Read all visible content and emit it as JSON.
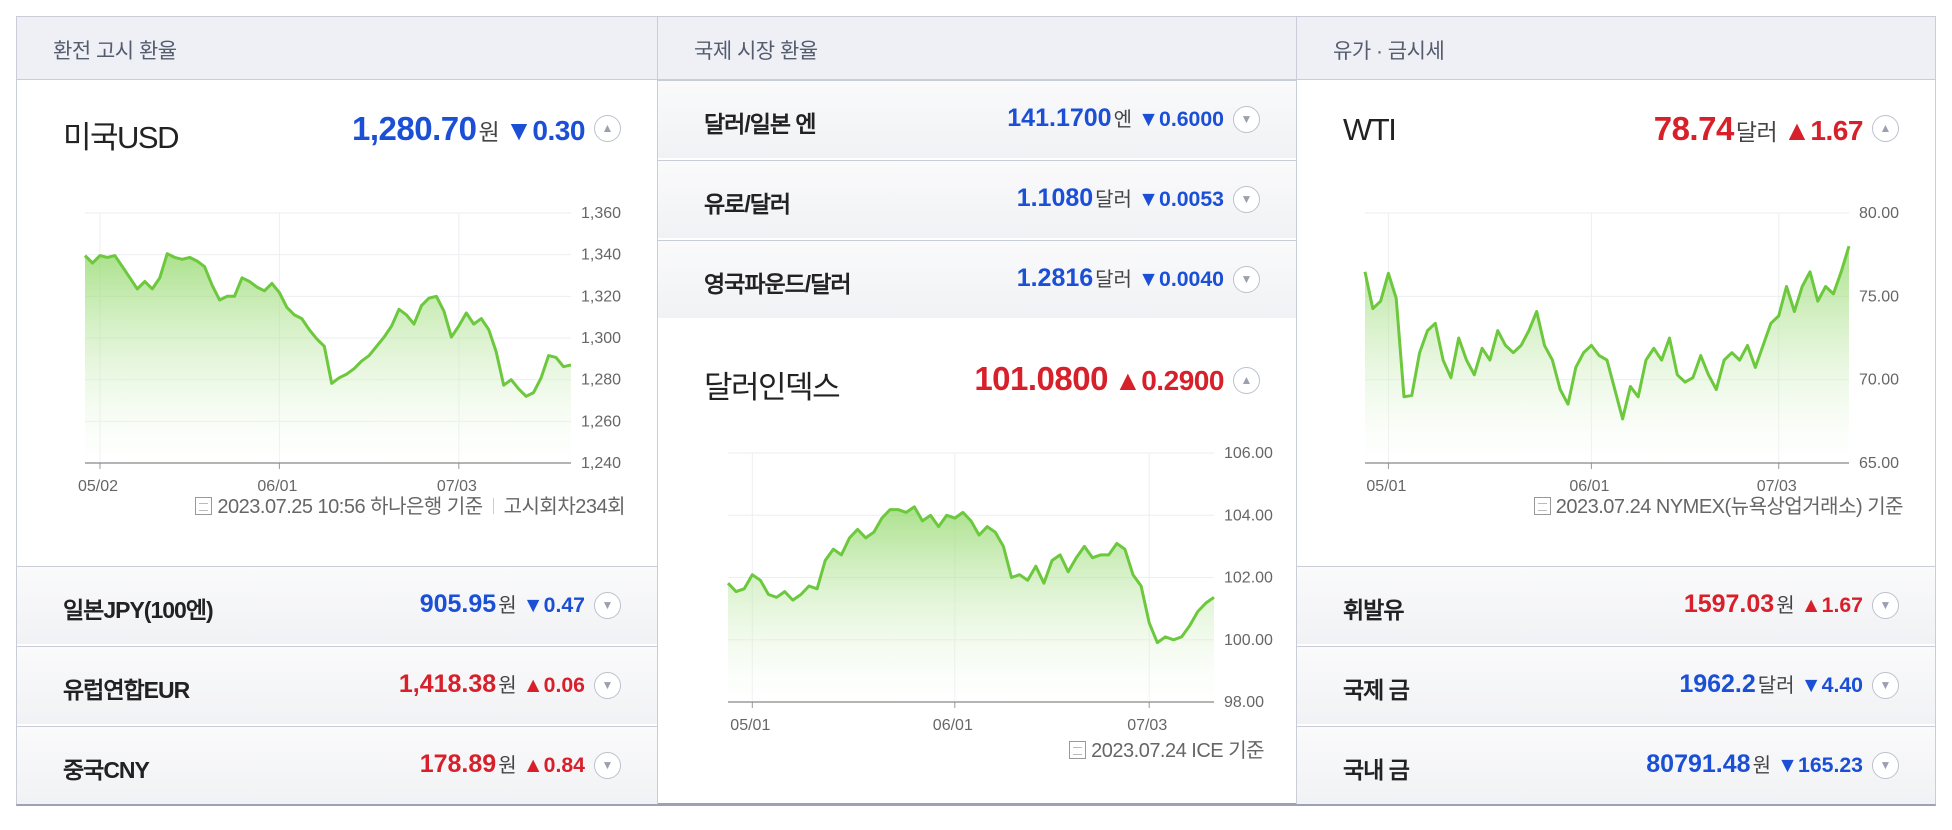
{
  "exchange": {
    "header": "환전 고시 환율",
    "main": {
      "name": "미국USD",
      "value": "1,280.70",
      "unit": "원",
      "change": "▼0.30",
      "direction": "down"
    },
    "note": {
      "text": "2023.07.25 10:56 하나은행 기준",
      "extra": "고시회차234회"
    },
    "rows": [
      {
        "name": "일본JPY(100엔)",
        "value": "905.95",
        "unit": "원",
        "change": "▼0.47",
        "direction": "down"
      },
      {
        "name": "유럽연합EUR",
        "value": "1,418.38",
        "unit": "원",
        "change": "▲0.06",
        "direction": "up"
      },
      {
        "name": "중국CNY",
        "value": "178.89",
        "unit": "원",
        "change": "▲0.84",
        "direction": "up"
      }
    ]
  },
  "world": {
    "header": "국제 시장 환율",
    "rows": [
      {
        "name": "달러/일본 엔",
        "value": "141.1700",
        "unit": "엔",
        "change": "▼0.6000",
        "direction": "down"
      },
      {
        "name": "유로/달러",
        "value": "1.1080",
        "unit": "달러",
        "change": "▼0.0053",
        "direction": "down"
      },
      {
        "name": "영국파운드/달러",
        "value": "1.2816",
        "unit": "달러",
        "change": "▼0.0040",
        "direction": "down"
      }
    ],
    "main": {
      "name": "달러인덱스",
      "value": "101.0800",
      "change": "▲0.2900",
      "direction": "up"
    },
    "note": {
      "text": "2023.07.24 ICE 기준"
    }
  },
  "oil": {
    "header": "유가 · 금시세",
    "main": {
      "name": "WTI",
      "value": "78.74",
      "unit": "달러",
      "change": "▲1.67",
      "direction": "up"
    },
    "note": {
      "text": "2023.07.24 NYMEX(뉴욕상업거래소) 기준"
    },
    "rows": [
      {
        "name": "휘발유",
        "value": "1597.03",
        "unit": "원",
        "change": "▲1.67",
        "direction": "up"
      },
      {
        "name": "국제 금",
        "value": "1962.2",
        "unit": "달러",
        "change": "▼4.40",
        "direction": "down"
      },
      {
        "name": "국내 금",
        "value": "80791.48",
        "unit": "원",
        "change": "▼165.23",
        "direction": "down"
      }
    ]
  },
  "colors": {
    "line": "#6cc83c",
    "down": "#1a4fd6",
    "up": "#d8202b"
  },
  "chart_data": [
    {
      "type": "area",
      "name": "usd",
      "x_ticks": [
        "05/02",
        "06/01",
        "07/03"
      ],
      "y_ticks": [
        "1,360",
        "1,340",
        "1,320",
        "1,300",
        "1,280",
        "1,260",
        "1,240"
      ],
      "ylim": [
        1230,
        1365
      ],
      "x_tick_index": [
        2,
        26,
        50
      ],
      "values": [
        1342,
        1338,
        1342,
        1341,
        1342,
        1336,
        1330,
        1324,
        1328,
        1324,
        1330,
        1343,
        1341,
        1340,
        1341,
        1339,
        1336,
        1326,
        1318,
        1320,
        1320,
        1330,
        1328,
        1325,
        1323,
        1327,
        1322,
        1314,
        1310,
        1308,
        1302,
        1297,
        1293,
        1273,
        1276,
        1278,
        1281,
        1285,
        1288,
        1293,
        1298,
        1304,
        1313,
        1310,
        1305,
        1315,
        1319,
        1320,
        1312,
        1298,
        1304,
        1311,
        1305,
        1308,
        1302,
        1290,
        1272,
        1275,
        1270,
        1266,
        1268,
        1276,
        1288,
        1287,
        1282,
        1283
      ]
    },
    {
      "type": "area",
      "name": "dollar-index",
      "x_ticks": [
        "05/01",
        "06/01",
        "07/03"
      ],
      "y_ticks": [
        "106.00",
        "104.00",
        "102.00",
        "100.00",
        "98.00"
      ],
      "ylim": [
        97.4,
        106.2
      ],
      "x_tick_index": [
        3,
        28,
        52
      ],
      "values": [
        101.6,
        101.3,
        101.4,
        101.9,
        101.7,
        101.2,
        101.1,
        101.3,
        101.0,
        101.2,
        101.5,
        101.4,
        102.4,
        102.8,
        102.6,
        103.2,
        103.5,
        103.2,
        103.4,
        103.9,
        104.2,
        104.2,
        104.1,
        104.3,
        103.8,
        104.0,
        103.6,
        104.0,
        103.9,
        104.1,
        103.8,
        103.3,
        103.6,
        103.4,
        102.9,
        101.8,
        101.9,
        101.7,
        102.2,
        101.6,
        102.4,
        102.6,
        102.0,
        102.5,
        102.9,
        102.5,
        102.6,
        102.6,
        103.0,
        102.8,
        101.9,
        101.5,
        100.2,
        99.5,
        99.7,
        99.6,
        99.7,
        100.1,
        100.6,
        100.9,
        101.1
      ]
    },
    {
      "type": "area",
      "name": "wti",
      "x_ticks": [
        "05/01",
        "06/01",
        "07/03"
      ],
      "y_ticks": [
        "80.00",
        "75.00",
        "70.00",
        "65.00"
      ],
      "ylim": [
        64.0,
        81.0
      ],
      "x_tick_index": [
        3,
        29,
        53
      ],
      "values": [
        77.0,
        74.5,
        75.0,
        76.9,
        75.2,
        68.5,
        68.6,
        71.5,
        73.0,
        73.5,
        71.0,
        69.8,
        72.5,
        71.0,
        70.0,
        71.8,
        71.0,
        73.0,
        72.0,
        71.5,
        72.0,
        73.0,
        74.3,
        72.0,
        71.0,
        69.0,
        68.0,
        70.5,
        71.5,
        72.0,
        71.3,
        71.0,
        69.0,
        67.0,
        69.2,
        68.5,
        71.0,
        71.8,
        71.0,
        72.5,
        70.0,
        69.5,
        69.8,
        71.3,
        70.0,
        69.0,
        71.0,
        71.5,
        71.0,
        72.0,
        70.5,
        72.0,
        73.5,
        74.0,
        76.0,
        74.3,
        76.0,
        77.0,
        75.0,
        76.0,
        75.5,
        77.0,
        78.74
      ]
    }
  ]
}
